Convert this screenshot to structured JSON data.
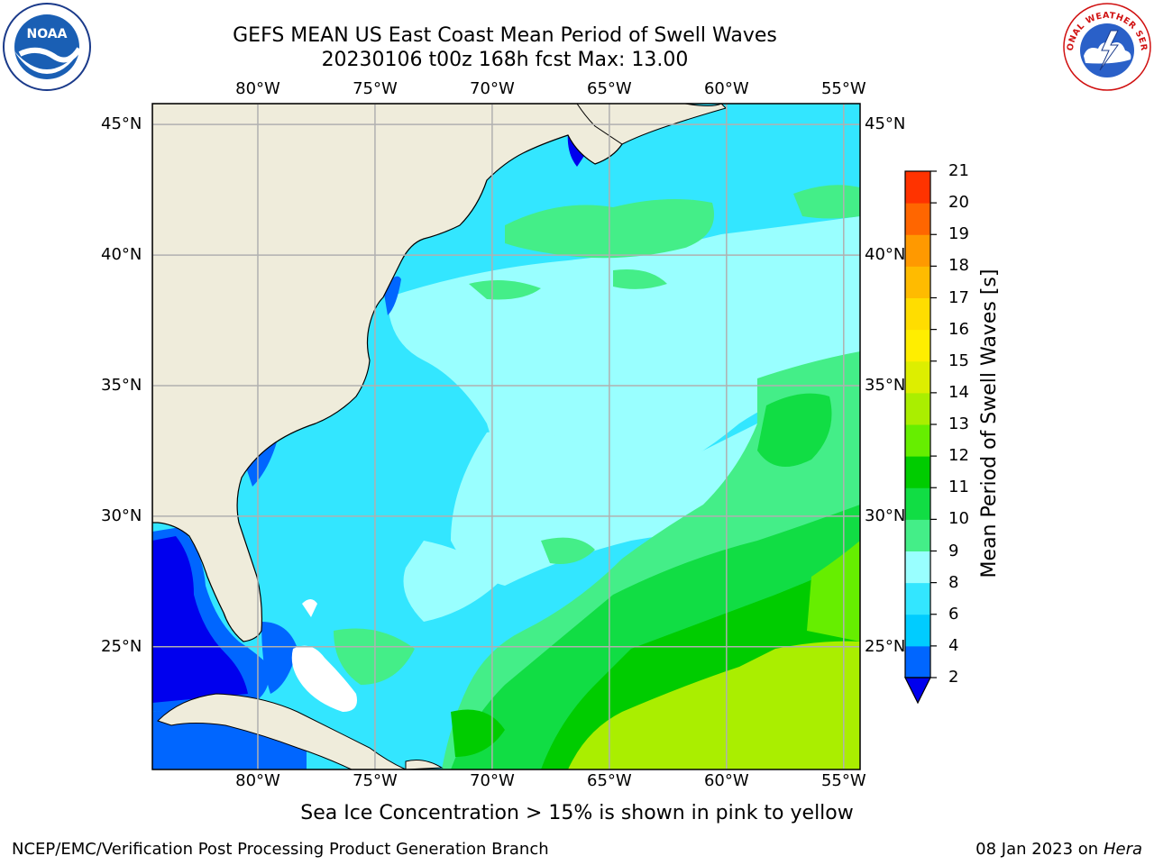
{
  "header": {
    "title_line1": "GEFS MEAN US East Coast Mean Period of Swell Waves",
    "title_line2": "20230106 t00z 168h fcst   Max: 13.00"
  },
  "logos": {
    "left": {
      "icon": "noaa-logo",
      "text": "NOAA"
    },
    "right": {
      "icon": "nws-logo",
      "text": "NATIONAL WEATHER SERVICE"
    }
  },
  "map": {
    "lon_labels": [
      "80°W",
      "75°W",
      "70°W",
      "65°W",
      "60°W",
      "55°W"
    ],
    "lat_labels": [
      "45°N",
      "40°N",
      "35°N",
      "30°N",
      "25°N"
    ],
    "lon_range": [
      -84.5,
      -54.3
    ],
    "lat_range": [
      20.3,
      45.8
    ],
    "land_color": "#efecdb",
    "grid_color": "#b0b0b0"
  },
  "colorbar": {
    "label": "Mean Period of Swell Waves [s]",
    "levels": [
      "2",
      "4",
      "6",
      "8",
      "9",
      "10",
      "11",
      "12",
      "13",
      "14",
      "15",
      "16",
      "17",
      "18",
      "19",
      "20",
      "21"
    ],
    "colors": [
      "#0066ff",
      "#00ccff",
      "#33e6ff",
      "#99ffff",
      "#44ee88",
      "#11dd44",
      "#00cc00",
      "#66ee00",
      "#aaee00",
      "#ddee00",
      "#ffee00",
      "#ffdd00",
      "#ffbb00",
      "#ff9900",
      "#ff6600",
      "#ff3300"
    ],
    "under_color": "#0000ee"
  },
  "footer": {
    "note": "Sea Ice Concentration > 15% is shown in pink to yellow",
    "credit": "NCEP/EMC/Verification Post Processing Product Generation Branch",
    "date": "08 Jan 2023 on",
    "machine": "Hera"
  }
}
